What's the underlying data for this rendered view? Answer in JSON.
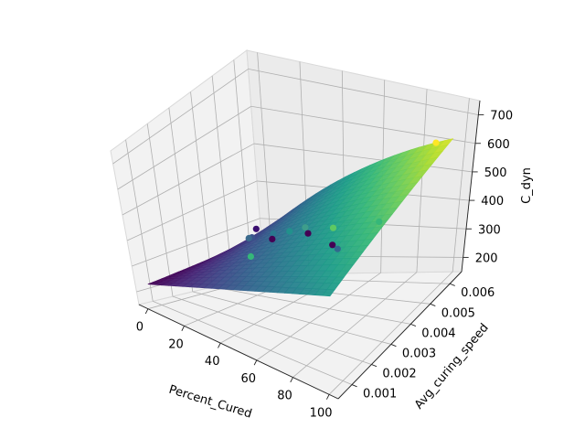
{
  "chart_data": {
    "type": "surface3d_scatter",
    "title": "",
    "colormap": "viridis",
    "axes": {
      "x": {
        "label": "Percent_Cured",
        "range": [
          -5,
          105
        ],
        "ticks": [
          0,
          20,
          40,
          60,
          80,
          100
        ],
        "tick_labels": [
          "0",
          "20",
          "40",
          "60",
          "80",
          "100"
        ]
      },
      "y": {
        "label": "Avg_curing_speed",
        "range": [
          0.0003,
          0.0066
        ],
        "ticks": [
          0.001,
          0.002,
          0.003,
          0.004,
          0.005,
          0.006
        ],
        "tick_labels": [
          "0.001",
          "0.002",
          "0.003",
          "0.004",
          "0.005",
          "0.006"
        ]
      },
      "z": {
        "label": "C_dyn",
        "range": [
          150,
          750
        ],
        "ticks": [
          200,
          300,
          400,
          500,
          600,
          700
        ],
        "tick_labels": [
          "200",
          "300",
          "400",
          "500",
          "600",
          "700"
        ]
      }
    },
    "grid": true,
    "surface": {
      "x_range": [
        0,
        100
      ],
      "y_range": [
        0.0005,
        0.006
      ],
      "z_corners": {
        "x0_ymin": 240,
        "x0_ymax": 260,
        "x100_ymin": 470,
        "x100_ymax": 650
      },
      "curvature": 60,
      "samples": 26
    },
    "scatter": [
      {
        "x": 5,
        "y": 0.0055,
        "z": 300,
        "color": "#3b0f70"
      },
      {
        "x": 8,
        "y": 0.005,
        "z": 290,
        "color": "#3b528b"
      },
      {
        "x": 12,
        "y": 0.0045,
        "z": 305,
        "color": "#3a6a8c"
      },
      {
        "x": 18,
        "y": 0.004,
        "z": 270,
        "color": "#35b779"
      },
      {
        "x": 22,
        "y": 0.0048,
        "z": 320,
        "color": "#2a788e"
      },
      {
        "x": 28,
        "y": 0.0042,
        "z": 330,
        "color": "#440154"
      },
      {
        "x": 33,
        "y": 0.0046,
        "z": 345,
        "color": "#21918c"
      },
      {
        "x": 38,
        "y": 0.0049,
        "z": 350,
        "color": "#3e9d8b"
      },
      {
        "x": 45,
        "y": 0.0044,
        "z": 360,
        "color": "#440154"
      },
      {
        "x": 55,
        "y": 0.0047,
        "z": 375,
        "color": "#5ec962"
      },
      {
        "x": 60,
        "y": 0.0042,
        "z": 350,
        "color": "#440154"
      },
      {
        "x": 66,
        "y": 0.0039,
        "z": 360,
        "color": "#31688e"
      },
      {
        "x": 80,
        "y": 0.0046,
        "z": 430,
        "color": "#35b779"
      },
      {
        "x": 90,
        "y": 0.0062,
        "z": 610,
        "color": "#fde725"
      }
    ]
  }
}
